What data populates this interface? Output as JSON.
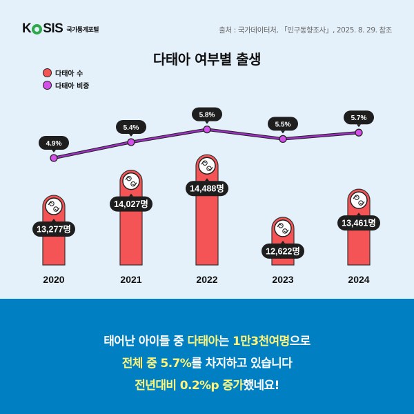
{
  "header": {
    "logo": {
      "brand": "KOSIS",
      "subtitle": "국가통계포털"
    },
    "source": "출처 : 국가데이터처, 「인구동향조사」, 2025. 8. 29. 참조",
    "title": "다태아 여부별 출생"
  },
  "legend": [
    {
      "label": "다태아 수",
      "color": "#f45455"
    },
    {
      "label": "다태아 비중",
      "color": "#d24fe8"
    }
  ],
  "colors": {
    "background": "#e5f1fa",
    "bar": "#f45455",
    "line": "#9b2fbf",
    "marker": "#d24fe8",
    "label_bg": "#1e1e1e",
    "footer_bg": "#0080c2",
    "highlight": "#fff47a"
  },
  "chart_data": {
    "type": "bar+line",
    "title": "다태아 여부별 출생",
    "categories": [
      "2020",
      "2021",
      "2022",
      "2023",
      "2024"
    ],
    "series": [
      {
        "name": "다태아 수",
        "type": "bar",
        "unit": "명",
        "values": [
          13277,
          14027,
          14488,
          12622,
          13461
        ],
        "labels": [
          "13,277명",
          "14,027명",
          "14,488명",
          "12,622명",
          "13,461명"
        ]
      },
      {
        "name": "다태아 비중",
        "type": "line",
        "unit": "%",
        "values": [
          4.9,
          5.4,
          5.8,
          5.5,
          5.7
        ],
        "labels": [
          "4.9%",
          "5.4%",
          "5.8%",
          "5.5%",
          "5.7%"
        ]
      }
    ],
    "xlabel": "",
    "ylabel": "",
    "grid": false,
    "legend_position": "top-left"
  },
  "footer": {
    "line1": {
      "a": "태어난 아이들 중 ",
      "b": "다태아",
      "c": "는 ",
      "d": "1만3천여명",
      "e": "으로"
    },
    "line2": {
      "a": "전체 중 5.7%",
      "b": "를 차지하고 있습니다"
    },
    "line3": {
      "a": "전년대비 0.2%p 증가",
      "b": "했네요!"
    }
  }
}
